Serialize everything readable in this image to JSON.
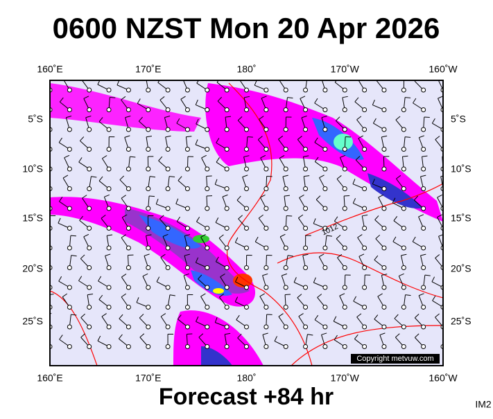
{
  "header": {
    "title": "0600 NZST Mon 20 Apr 2026"
  },
  "map": {
    "top_labels": [
      "160˚E",
      "170˚E",
      "180˚",
      "170˚W",
      "160˚W"
    ],
    "bottom_labels": [
      "160˚E",
      "170˚E",
      "180˚",
      "170˚W",
      "160˚W"
    ],
    "left_labels": [
      "5˚S",
      "10˚S",
      "15˚S",
      "20˚S",
      "25˚S"
    ],
    "right_labels": [
      "5˚S",
      "10˚S",
      "15˚S",
      "20˚S",
      "25˚S"
    ],
    "contour_label": "1012",
    "copyright": "Copyright metvuw.com"
  },
  "footer": {
    "forecast": "Forecast +84 hr",
    "code": "IM2"
  }
}
